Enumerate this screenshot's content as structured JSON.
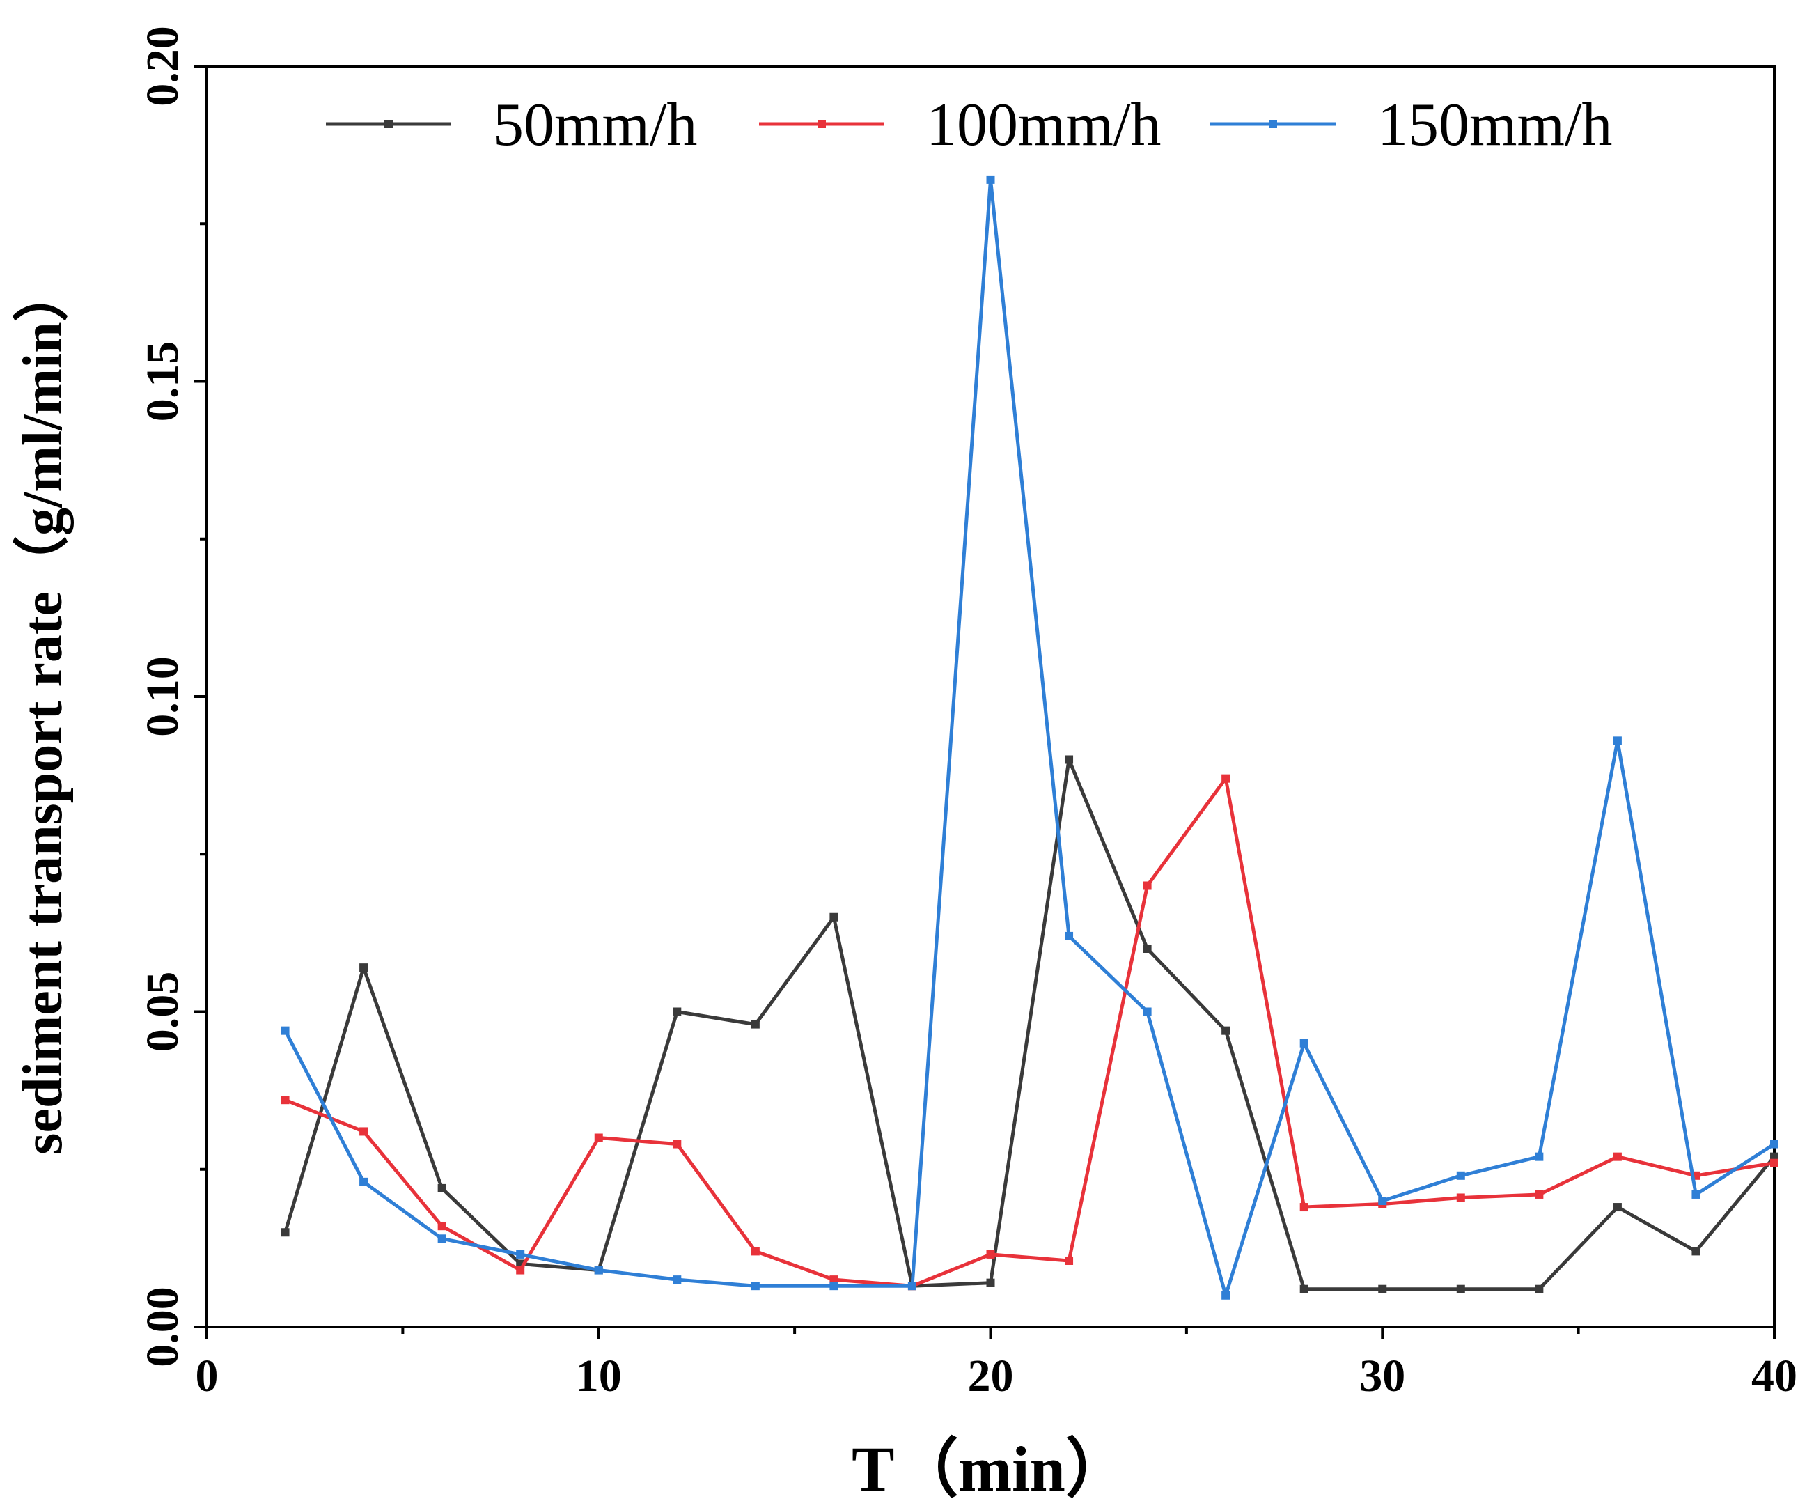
{
  "chart_data": {
    "type": "line",
    "title": "",
    "xlabel": "T（min）",
    "ylabel": "sediment transport rate（g/ml/min）",
    "xlim": [
      0,
      40
    ],
    "ylim": [
      0,
      0.2
    ],
    "xticks": [
      0,
      10,
      20,
      30,
      40
    ],
    "xtick_labels": [
      "0",
      "10",
      "20",
      "30",
      "40"
    ],
    "yticks": [
      0,
      0.05,
      0.1,
      0.15,
      0.2
    ],
    "ytick_labels": [
      "0.00",
      "0.05",
      "0.10",
      "0.15",
      "0.20"
    ],
    "grid": false,
    "legend_position": "top",
    "x": [
      2,
      4,
      6,
      8,
      10,
      12,
      14,
      16,
      18,
      20,
      22,
      24,
      26,
      28,
      30,
      32,
      34,
      36,
      38,
      40
    ],
    "series": [
      {
        "name": "50mm/h",
        "color": "#3a3a3a",
        "values": [
          0.015,
          0.057,
          0.022,
          0.01,
          0.009,
          0.05,
          0.048,
          0.065,
          0.0065,
          0.007,
          0.09,
          0.06,
          0.047,
          0.006,
          0.006,
          0.006,
          0.006,
          0.019,
          0.012,
          0.027
        ]
      },
      {
        "name": "100mm/h",
        "color": "#e8323a",
        "values": [
          0.036,
          0.031,
          0.016,
          0.009,
          0.03,
          0.029,
          0.012,
          0.0075,
          0.0065,
          0.0115,
          0.0105,
          0.07,
          0.087,
          0.019,
          0.0195,
          0.0205,
          0.021,
          0.027,
          0.024,
          0.026
        ]
      },
      {
        "name": "150mm/h",
        "color": "#2f7fd6",
        "values": [
          0.047,
          0.023,
          0.014,
          0.0115,
          0.009,
          0.0075,
          0.0065,
          0.0065,
          0.0065,
          0.182,
          0.062,
          0.05,
          0.005,
          0.045,
          0.02,
          0.024,
          0.027,
          0.093,
          0.021,
          0.029
        ]
      }
    ]
  }
}
